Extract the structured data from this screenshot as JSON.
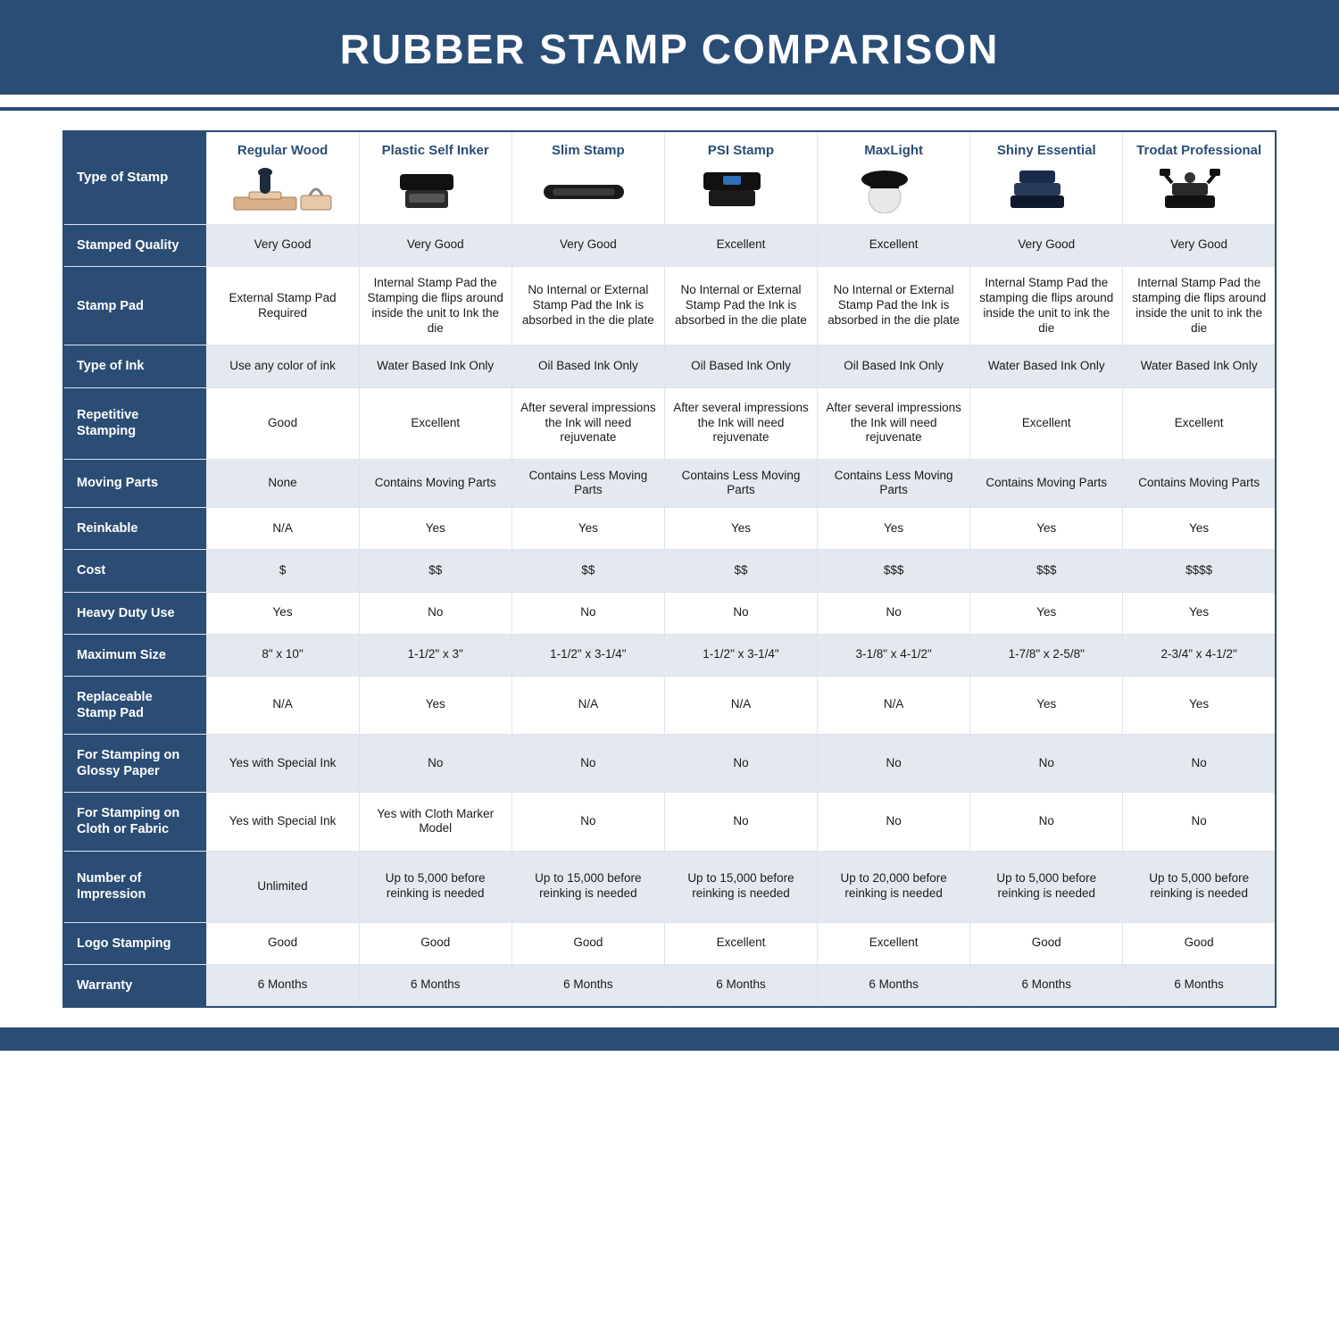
{
  "title": "RUBBER STAMP COMPARISON",
  "colors": {
    "navy": "#2b4d74",
    "header_blue": "#2a4d76",
    "zebra": "#e4e9ef",
    "cell_border": "#dfe4ea",
    "page_bg": "#ffffff"
  },
  "table": {
    "corner_label": "Type of Stamp",
    "columns": [
      {
        "label": "Regular Wood",
        "icon": "wood"
      },
      {
        "label": "Plastic Self Inker",
        "icon": "self"
      },
      {
        "label": "Slim Stamp",
        "icon": "slim"
      },
      {
        "label": "PSI Stamp",
        "icon": "psi"
      },
      {
        "label": "MaxLight",
        "icon": "max"
      },
      {
        "label": "Shiny Essential",
        "icon": "shiny"
      },
      {
        "label": "Trodat Professional",
        "icon": "trodat"
      }
    ],
    "rows": [
      {
        "label": "Stamped Quality",
        "zebra": true,
        "cells": [
          "Very Good",
          "Very Good",
          "Very Good",
          "Excellent",
          "Excellent",
          "Very Good",
          "Very Good"
        ]
      },
      {
        "label": "Stamp Pad",
        "zebra": false,
        "tall": true,
        "cells": [
          "External Stamp Pad Required",
          "Internal Stamp Pad the Stamping die flips around inside the unit to Ink the die",
          "No Internal or External Stamp Pad the Ink is absorbed in the die plate",
          "No Internal or External Stamp Pad the Ink is absorbed in the die plate",
          "No Internal or External Stamp Pad the Ink is absorbed in the die plate",
          "Internal Stamp Pad the stamping die flips around inside the unit to ink the die",
          "Internal Stamp Pad the stamping die flips around inside the unit to ink the die"
        ]
      },
      {
        "label": "Type of Ink",
        "zebra": true,
        "cells": [
          "Use any color of ink",
          "Water Based Ink Only",
          "Oil Based Ink Only",
          "Oil Based Ink Only",
          "Oil Based Ink Only",
          "Water Based Ink Only",
          "Water Based Ink Only"
        ]
      },
      {
        "label": "Repetitive Stamping",
        "zebra": false,
        "tall": true,
        "cells": [
          "Good",
          "Excellent",
          "After several impressions the Ink will need rejuvenate",
          "After several impressions the Ink will need rejuvenate",
          "After several impressions the Ink will need rejuvenate",
          "Excellent",
          "Excellent"
        ]
      },
      {
        "label": "Moving Parts",
        "zebra": true,
        "cells": [
          "None",
          "Contains Moving Parts",
          "Contains Less Moving Parts",
          "Contains Less Moving Parts",
          "Contains Less Moving Parts",
          "Contains Moving Parts",
          "Contains Moving Parts"
        ]
      },
      {
        "label": "Reinkable",
        "zebra": false,
        "cells": [
          "N/A",
          "Yes",
          "Yes",
          "Yes",
          "Yes",
          "Yes",
          "Yes"
        ]
      },
      {
        "label": "Cost",
        "zebra": true,
        "cells": [
          "$",
          "$$",
          "$$",
          "$$",
          "$$$",
          "$$$",
          "$$$$"
        ]
      },
      {
        "label": "Heavy Duty Use",
        "zebra": false,
        "cells": [
          "Yes",
          "No",
          "No",
          "No",
          "No",
          "Yes",
          "Yes"
        ]
      },
      {
        "label": "Maximum Size",
        "zebra": true,
        "cells": [
          "8\" x 10\"",
          "1-1/2\" x 3\"",
          "1-1/2\" x 3-1/4\"",
          "1-1/2\" x 3-1/4\"",
          "3-1/8\" x 4-1/2\"",
          "1-7/8\" x 2-5/8\"",
          "2-3/4\" x 4-1/2\""
        ]
      },
      {
        "label": "Replaceable Stamp Pad",
        "zebra": false,
        "cells": [
          "N/A",
          "Yes",
          "N/A",
          "N/A",
          "N/A",
          "Yes",
          "Yes"
        ]
      },
      {
        "label": "For Stamping on Glossy Paper",
        "zebra": true,
        "cells": [
          "Yes with Special Ink",
          "No",
          "No",
          "No",
          "No",
          "No",
          "No"
        ]
      },
      {
        "label": "For Stamping on Cloth or Fabric",
        "zebra": false,
        "cells": [
          "Yes with Special Ink",
          "Yes with Cloth Marker Model",
          "No",
          "No",
          "No",
          "No",
          "No"
        ]
      },
      {
        "label": "Number of Impression",
        "zebra": true,
        "tall": true,
        "cells": [
          "Unlimited",
          "Up to 5,000 before reinking is needed",
          "Up to 15,000 before reinking is needed",
          "Up to 15,000 before reinking is needed",
          "Up to 20,000 before reinking is needed",
          "Up to 5,000 before reinking is needed",
          "Up to 5,000 before reinking is needed"
        ]
      },
      {
        "label": "Logo Stamping",
        "zebra": false,
        "cells": [
          "Good",
          "Good",
          "Good",
          "Excellent",
          "Excellent",
          "Good",
          "Good"
        ]
      },
      {
        "label": "Warranty",
        "zebra": true,
        "cells": [
          "6 Months",
          "6 Months",
          "6 Months",
          "6 Months",
          "6 Months",
          "6 Months",
          "6 Months"
        ]
      }
    ]
  }
}
